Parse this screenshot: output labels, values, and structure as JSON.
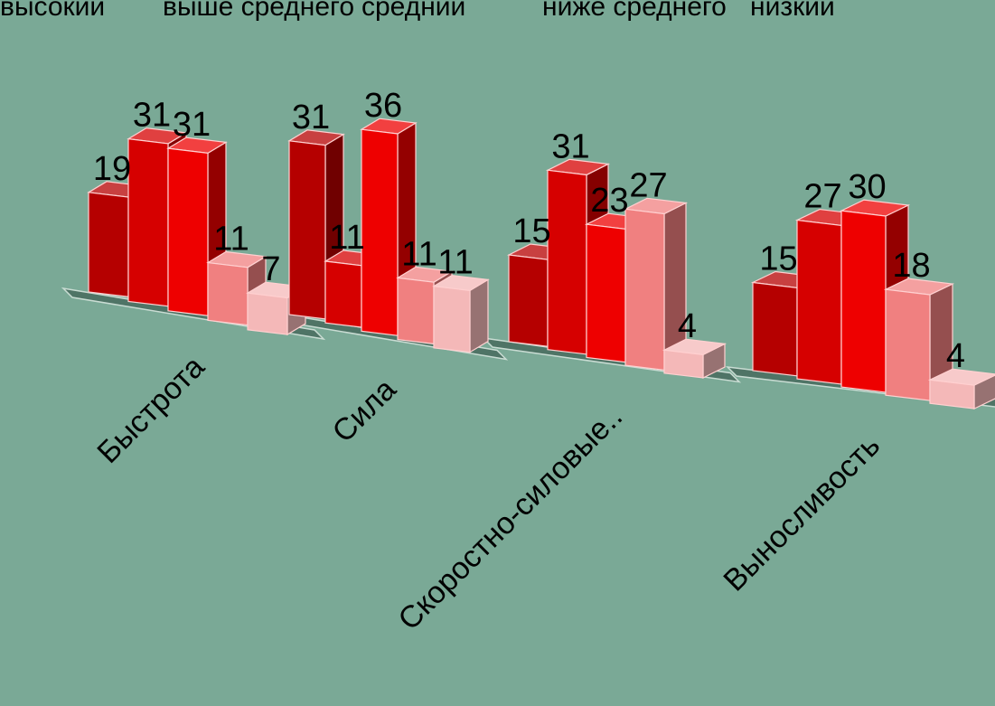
{
  "chart_data": {
    "type": "bar",
    "categories": [
      "Быстрота",
      "Сила",
      "Скоростно-силовые..",
      "Выносливость"
    ],
    "series": [
      {
        "name": "высокий",
        "values": [
          19,
          31,
          15,
          15
        ]
      },
      {
        "name": "выше среднего",
        "values": [
          31,
          11,
          31,
          27
        ]
      },
      {
        "name": "средний",
        "values": [
          31,
          36,
          23,
          30
        ]
      },
      {
        "name": "ниже среднего",
        "values": [
          11,
          11,
          27,
          18
        ]
      },
      {
        "name": "низкий",
        "values": [
          7,
          11,
          4,
          4
        ]
      }
    ],
    "legend_position": "top",
    "grid": false,
    "three_d": true
  },
  "colors": {
    "background": "#7aa996",
    "series": [
      "#b50000",
      "#d60000",
      "#ee0000",
      "#f08080",
      "#f4b8b8"
    ]
  }
}
